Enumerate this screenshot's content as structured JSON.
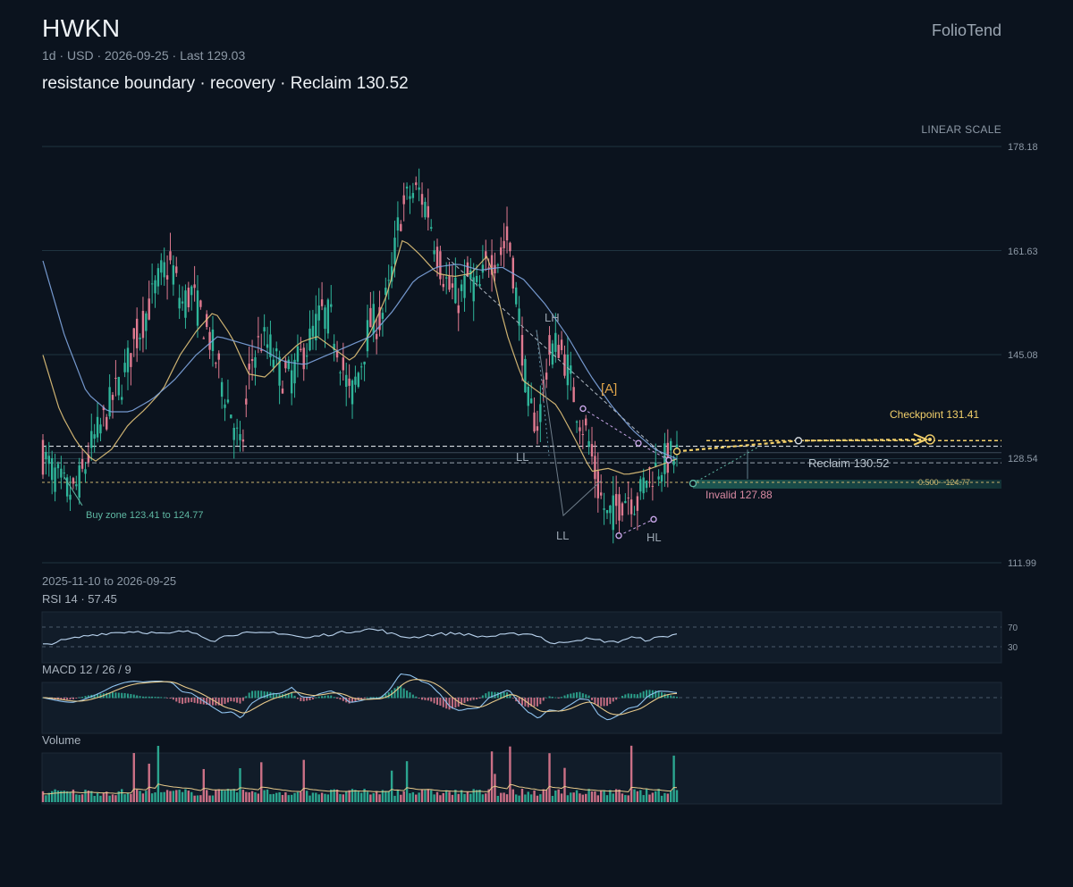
{
  "header": {
    "ticker": "HWKN",
    "meta": "1d · USD · 2026-09-25 · Last 129.03",
    "setup": "resistance boundary · recovery · Reclaim 130.52",
    "brand": "FolioTend",
    "scale_badge": "LINEAR SCALE"
  },
  "chart_data": {
    "type": "candlestick",
    "symbol": "HWKN",
    "interval": "1d",
    "currency": "USD",
    "date_range": "2025-11-10 to 2026-09-25",
    "last_price": 129.03,
    "y_axis": {
      "scale": "linear",
      "range": [
        111.99,
        178.18
      ],
      "ticks": [
        "178.18",
        "161.63",
        "145.08",
        "128.54",
        "111.99"
      ]
    },
    "closes_approx": [
      129,
      126.5,
      124,
      123,
      126,
      131,
      134,
      138,
      141,
      146,
      150,
      154,
      158,
      159.5,
      153,
      155,
      151,
      147,
      141,
      136,
      129,
      144,
      147.5,
      146,
      142,
      141.5,
      144.5,
      147.5,
      151.5,
      151,
      145,
      138,
      143,
      150,
      150.5,
      155.5,
      167,
      170.5,
      171,
      167.5,
      160,
      155.5,
      154,
      157.5,
      155,
      160.5,
      160.5,
      164,
      152,
      137,
      134,
      145,
      147,
      143,
      136,
      132,
      124,
      119,
      121,
      123,
      121.5,
      126,
      127,
      128.5,
      129.03
    ],
    "moving_averages": [
      {
        "color": "#e2c37a",
        "values": [
          145,
          136,
          131,
          128,
          130,
          134,
          136.5,
          139.5,
          145,
          149,
          152,
          148,
          142,
          141.5,
          144.5,
          147,
          148,
          146,
          144,
          148,
          154,
          163.5,
          161,
          158,
          157.5,
          158,
          161,
          149,
          141,
          139,
          137,
          132,
          126.5,
          127,
          126,
          126.5,
          127.5,
          128.5
        ]
      },
      {
        "color": "#7fa6e0",
        "values": [
          160,
          148,
          139,
          136,
          136,
          138,
          141,
          145,
          148,
          147,
          146,
          144,
          143.5,
          145,
          146.5,
          148,
          152,
          157,
          159,
          159.5,
          158.5,
          159,
          157,
          153,
          148,
          142,
          137,
          133,
          130,
          128.5
        ]
      }
    ],
    "annotations": {
      "buy_zone": {
        "label": "Buy zone 123.41 to 124.77",
        "low": 123.41,
        "high": 124.77
      },
      "checkpoint": {
        "label": "Checkpoint 131.41",
        "value": 131.41
      },
      "reclaim": {
        "label": "Reclaim 130.52",
        "value": 130.52
      },
      "invalid": {
        "label": "Invalid 127.88",
        "value": 127.88
      },
      "fib": {
        "label": "0.500 · 124.77",
        "value": 124.77
      },
      "swing_labels": [
        "LL",
        "LH",
        "LL",
        "HL"
      ],
      "wave_label": "[A]"
    },
    "rsi": {
      "label": "RSI 14 · 57.45",
      "period": 14,
      "value": 57.45,
      "levels": [
        "70",
        "30"
      ],
      "range": [
        0,
        100
      ],
      "values": [
        35,
        42,
        48,
        54,
        58,
        60,
        62,
        59,
        56,
        62,
        58,
        43,
        55,
        58,
        57,
        60,
        55,
        48,
        54,
        58,
        62,
        66,
        63,
        52,
        50,
        55,
        57,
        58,
        52,
        52,
        55,
        58,
        54,
        36,
        43,
        47,
        44,
        40,
        50,
        45,
        50,
        57
      ]
    },
    "macd": {
      "label": "MACD 12 / 26 / 9",
      "fast": 12,
      "slow": 26,
      "signal": 9
    },
    "volume": {
      "label": "Volume"
    }
  },
  "colors": {
    "background": "#0b131e",
    "up": "#2fb59a",
    "down": "#e07a90",
    "grid": "#1f3440",
    "accent": "#f2cf6a",
    "purple": "#c8a6e8"
  }
}
